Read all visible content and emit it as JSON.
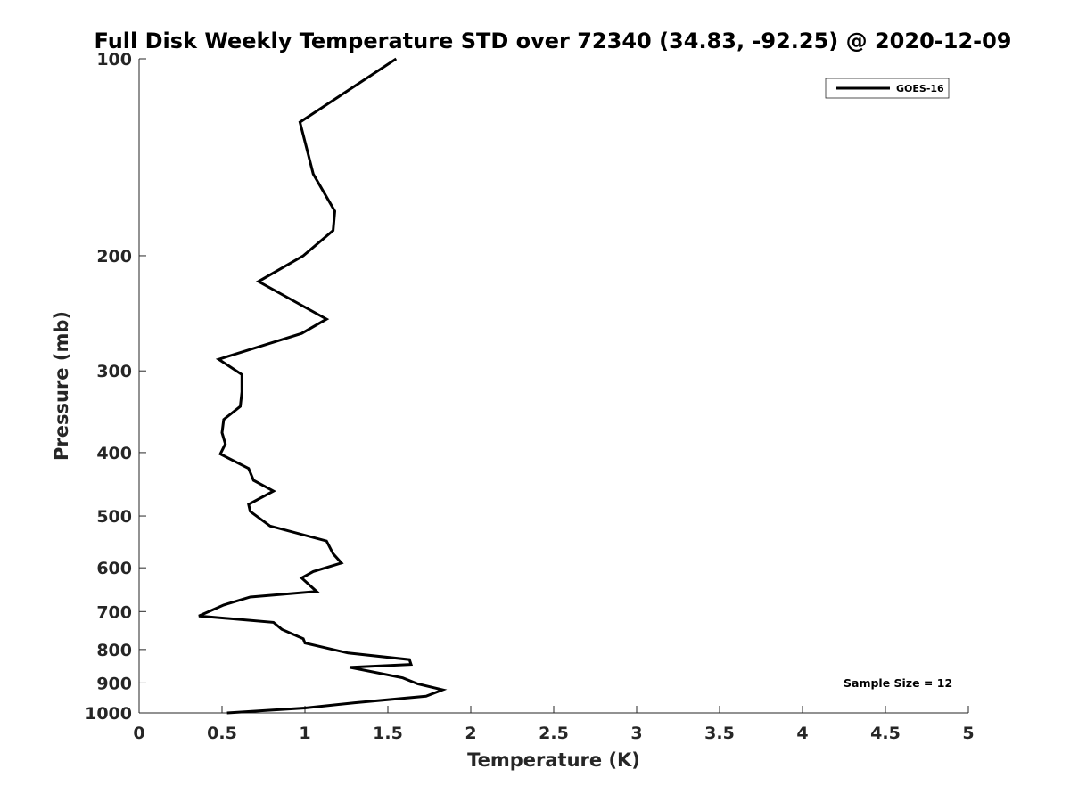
{
  "chart_data": {
    "type": "line",
    "title": "Full Disk Weekly Temperature STD over 72340 (34.83, -92.25) @ 2020-12-09",
    "xlabel": "Temperature (K)",
    "ylabel": "Pressure (mb)",
    "xlim": [
      0,
      5
    ],
    "ylim": [
      100,
      1000
    ],
    "y_scale": "log",
    "y_reversed": true,
    "x_ticks": [
      "0",
      "0.5",
      "1",
      "1.5",
      "2",
      "2.5",
      "3",
      "3.5",
      "4",
      "4.5",
      "5"
    ],
    "y_ticks": [
      "100",
      "200",
      "300",
      "400",
      "500",
      "600",
      "700",
      "800",
      "900",
      "1000"
    ],
    "grid": false,
    "legend_position": "top-right",
    "annotation": "Sample Size = 12",
    "series": [
      {
        "name": "GOES-16",
        "color": "#000000",
        "x": [
          1.55,
          0.97,
          1.05,
          1.18,
          1.17,
          0.99,
          0.72,
          1.13,
          0.98,
          0.48,
          0.62,
          0.62,
          0.61,
          0.51,
          0.5,
          0.52,
          0.49,
          0.66,
          0.69,
          0.81,
          0.66,
          0.67,
          0.79,
          1.13,
          1.17,
          1.22,
          1.05,
          0.98,
          1.07,
          0.67,
          0.51,
          0.36,
          0.81,
          0.86,
          0.99,
          1.0,
          1.26,
          1.63,
          1.64,
          1.27,
          1.59,
          1.68,
          1.83,
          1.73,
          1.3,
          1.0,
          0.53
        ],
        "y": [
          100,
          125,
          150,
          171,
          183,
          200,
          219,
          250,
          263,
          288,
          304,
          323,
          340,
          356,
          373,
          388,
          402,
          423,
          441,
          458,
          480,
          492,
          518,
          546,
          571,
          590,
          608,
          622,
          652,
          665,
          684,
          711,
          727,
          745,
          770,
          782,
          810,
          829,
          843,
          852,
          884,
          903,
          922,
          943,
          965,
          983,
          1000
        ]
      }
    ]
  }
}
